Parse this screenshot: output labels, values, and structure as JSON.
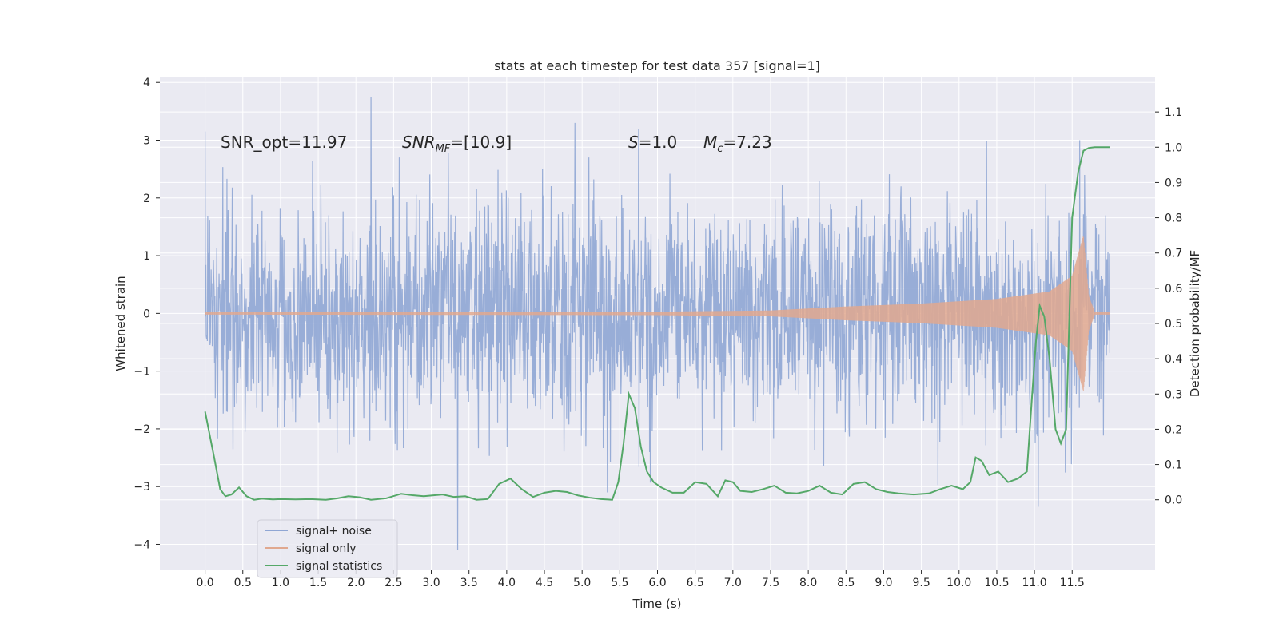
{
  "chart_data": {
    "type": "line",
    "title": "stats at each timestep for test data 357 [signal=1]",
    "xlabel": "Time (s)",
    "ylabel": "Whitened strain",
    "ylabel_right": "Detection probability/MF",
    "xlim": [
      -0.6,
      12.6
    ],
    "ylim": [
      -4.45,
      4.1
    ],
    "ylim_right": [
      -0.2,
      1.2
    ],
    "x_ticks": [
      "0.0",
      "0.5",
      "1.0",
      "1.5",
      "2.0",
      "2.5",
      "3.0",
      "3.5",
      "4.0",
      "4.5",
      "5.0",
      "5.5",
      "6.0",
      "6.5",
      "7.0",
      "7.5",
      "8.0",
      "8.5",
      "9.0",
      "9.5",
      "10.0",
      "10.5",
      "11.0",
      "11.5"
    ],
    "y_ticks": [
      "4",
      "3",
      "2",
      "1",
      "0",
      "−1",
      "−2",
      "−3",
      "−4"
    ],
    "y_ticks_right": [
      "1.1",
      "1.0",
      "0.9",
      "0.8",
      "0.7",
      "0.6",
      "0.5",
      "0.4",
      "0.3",
      "0.2",
      "0.1",
      "0.0"
    ],
    "grid": true,
    "legend_position": "lower-left",
    "annotations": {
      "snr_opt": "SNR_opt=11.97",
      "snr_mf_main": "SNR",
      "snr_mf_sub": "MF",
      "snr_mf_value": "=[10.9]",
      "s_symbol": "S",
      "s_value": "=1.0",
      "mc_symbol": "M",
      "mc_sub": "c",
      "mc_value": "=7.23"
    },
    "series": [
      {
        "name": "signal+ noise",
        "color": "#8fa6d4",
        "axis": "left",
        "description": "noisy whitened strain, envelope approx ±2.5 with spikes to ±4",
        "t_range": [
          0.0,
          12.0
        ],
        "envelope_hi": 2.3,
        "envelope_lo": -2.3,
        "notable_peaks": [
          [
            2.2,
            3.75
          ],
          [
            3.35,
            -4.1
          ],
          [
            5.75,
            3.2
          ],
          [
            11.6,
            3.0
          ],
          [
            11.05,
            -3.35
          ]
        ]
      },
      {
        "name": "signal only",
        "color": "#e0a88f",
        "axis": "left",
        "description": "chirp signal growing in amplitude toward merger near 11.65 s",
        "t_range": [
          0.0,
          12.0
        ],
        "amplitude_points": [
          [
            0.0,
            0.02
          ],
          [
            6.0,
            0.03
          ],
          [
            7.5,
            0.05
          ],
          [
            8.5,
            0.12
          ],
          [
            9.5,
            0.17
          ],
          [
            10.5,
            0.25
          ],
          [
            11.2,
            0.38
          ],
          [
            11.5,
            0.65
          ],
          [
            11.65,
            1.35
          ],
          [
            11.72,
            0.3
          ],
          [
            11.8,
            0.02
          ],
          [
            12.0,
            0.02
          ]
        ]
      },
      {
        "name": "signal statistics",
        "color": "#55a868",
        "axis": "right",
        "x": [
          0.0,
          0.12,
          0.2,
          0.27,
          0.35,
          0.45,
          0.55,
          0.65,
          0.75,
          0.9,
          1.0,
          1.2,
          1.4,
          1.6,
          1.75,
          1.9,
          2.05,
          2.2,
          2.4,
          2.6,
          2.75,
          2.9,
          3.0,
          3.15,
          3.3,
          3.45,
          3.6,
          3.75,
          3.9,
          4.05,
          4.2,
          4.35,
          4.5,
          4.65,
          4.8,
          4.95,
          5.1,
          5.25,
          5.4,
          5.48,
          5.55,
          5.62,
          5.7,
          5.78,
          5.86,
          5.95,
          6.05,
          6.2,
          6.35,
          6.5,
          6.65,
          6.8,
          6.9,
          7.0,
          7.1,
          7.25,
          7.4,
          7.55,
          7.7,
          7.85,
          8.0,
          8.15,
          8.3,
          8.45,
          8.6,
          8.75,
          8.9,
          9.05,
          9.2,
          9.4,
          9.6,
          9.75,
          9.9,
          10.05,
          10.15,
          10.22,
          10.3,
          10.4,
          10.52,
          10.65,
          10.78,
          10.9,
          10.97,
          11.02,
          11.07,
          11.13,
          11.2,
          11.28,
          11.35,
          11.42,
          11.5,
          11.58,
          11.65,
          11.72,
          11.8,
          11.9,
          12.0
        ],
        "values": [
          0.25,
          0.12,
          0.03,
          0.01,
          0.015,
          0.035,
          0.01,
          0.0,
          0.003,
          0.001,
          0.002,
          0.001,
          0.002,
          0.0,
          0.004,
          0.01,
          0.007,
          0.0,
          0.004,
          0.017,
          0.013,
          0.01,
          0.012,
          0.015,
          0.008,
          0.01,
          0.0,
          0.002,
          0.045,
          0.06,
          0.03,
          0.008,
          0.02,
          0.025,
          0.022,
          0.012,
          0.006,
          0.002,
          0.0,
          0.05,
          0.16,
          0.3,
          0.26,
          0.15,
          0.08,
          0.05,
          0.035,
          0.02,
          0.02,
          0.05,
          0.045,
          0.01,
          0.055,
          0.05,
          0.025,
          0.022,
          0.03,
          0.04,
          0.02,
          0.018,
          0.025,
          0.04,
          0.02,
          0.015,
          0.045,
          0.05,
          0.03,
          0.022,
          0.018,
          0.015,
          0.018,
          0.03,
          0.04,
          0.03,
          0.05,
          0.12,
          0.11,
          0.07,
          0.08,
          0.05,
          0.06,
          0.08,
          0.3,
          0.45,
          0.55,
          0.52,
          0.4,
          0.2,
          0.16,
          0.2,
          0.8,
          0.93,
          0.99,
          0.998,
          1.0,
          1.0,
          1.0
        ]
      }
    ]
  }
}
